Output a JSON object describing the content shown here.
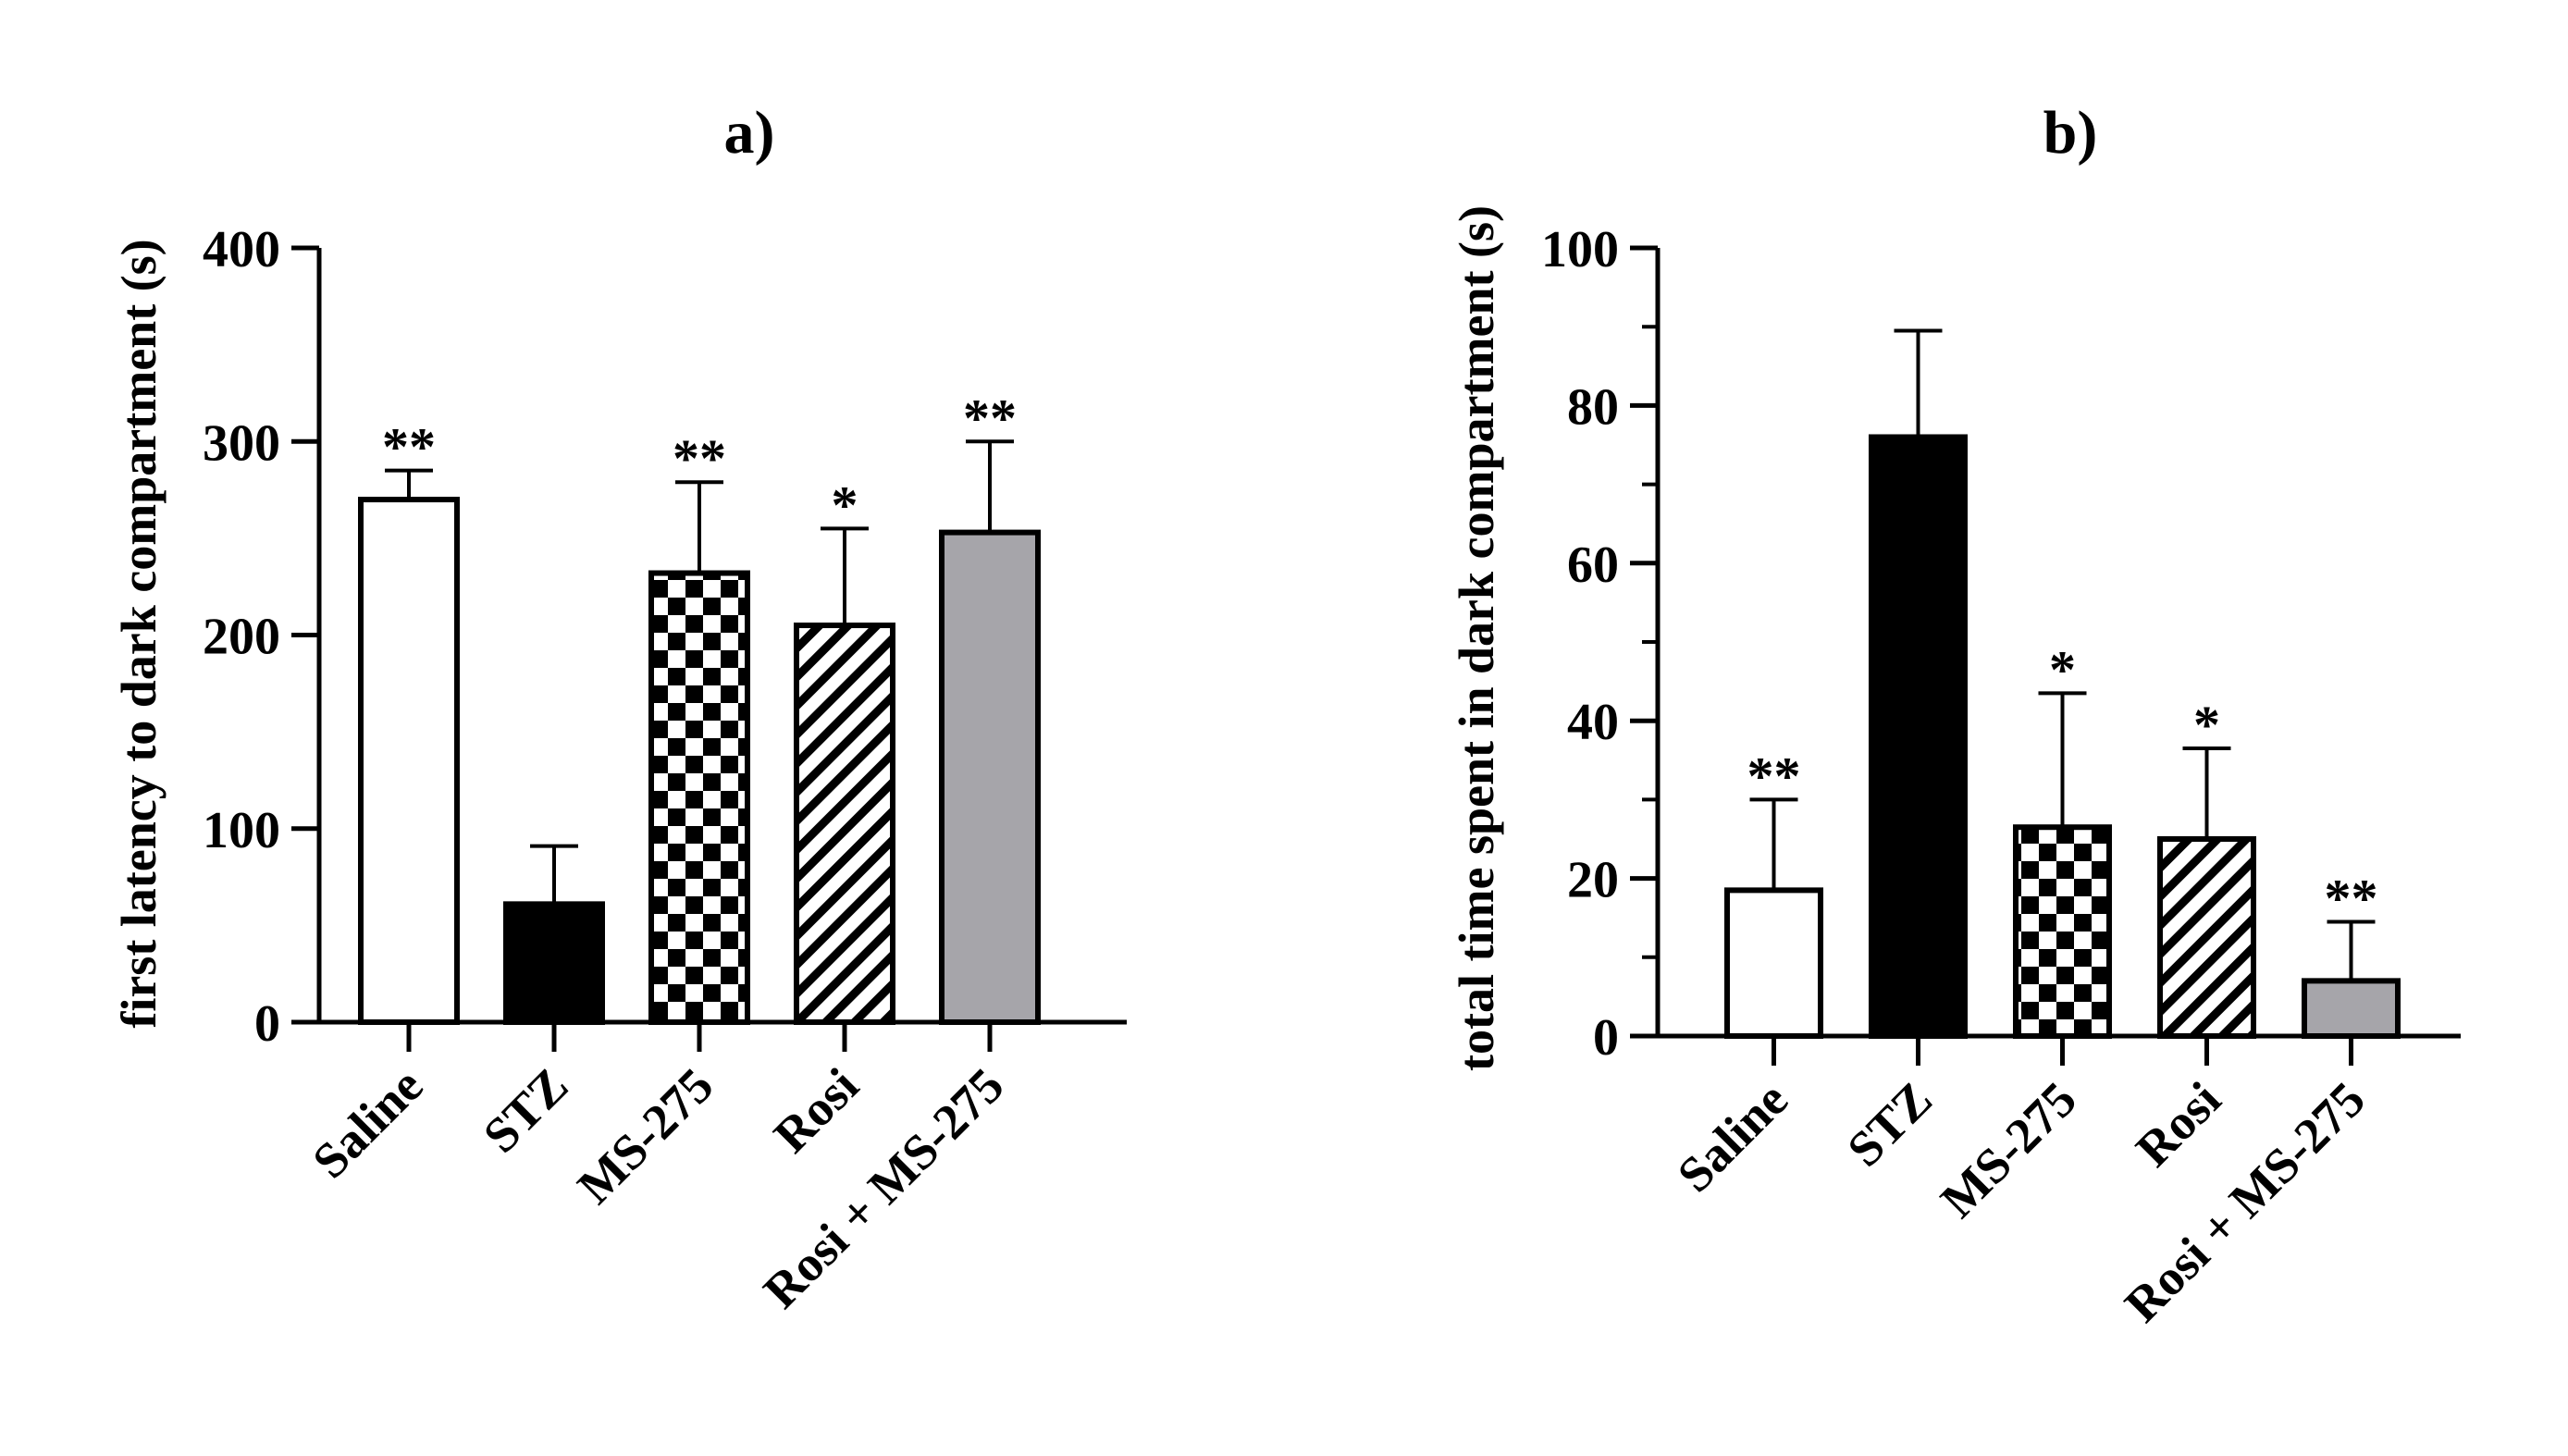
{
  "chart_data": [
    {
      "type": "bar",
      "title": "a)",
      "ylabel": "first latency to dark compartment (s)",
      "xlabel": "",
      "ylim": [
        0,
        400
      ],
      "yticks": [
        0,
        100,
        200,
        300,
        400
      ],
      "categories": [
        "Saline",
        "STZ",
        "MS-275",
        "Rosi",
        "Rosi + MS-275"
      ],
      "values": [
        270,
        61,
        232,
        205,
        253
      ],
      "errors": [
        15,
        30,
        47,
        50,
        47
      ],
      "significance": [
        "**",
        "",
        "**",
        "*",
        "**"
      ],
      "fills": [
        "white",
        "black",
        "checker",
        "hatch",
        "gray"
      ]
    },
    {
      "type": "bar",
      "title": "b)",
      "ylabel": "total time spent in dark compartment (s)",
      "xlabel": "",
      "ylim": [
        0,
        100
      ],
      "yticks": [
        0,
        20,
        40,
        60,
        80,
        100
      ],
      "categories": [
        "Saline",
        "STZ",
        "MS-275",
        "Rosi",
        "Rosi + MS-275"
      ],
      "values": [
        18.5,
        76,
        26.5,
        25,
        7
      ],
      "errors": [
        11.5,
        13.5,
        17,
        11.5,
        7.5
      ],
      "significance": [
        "**",
        "",
        "*",
        "*",
        "**"
      ],
      "fills": [
        "white",
        "black",
        "checker",
        "hatch",
        "gray"
      ]
    }
  ],
  "colors": {
    "gray": "#a6a5aa",
    "black": "#000000",
    "white": "#ffffff"
  }
}
